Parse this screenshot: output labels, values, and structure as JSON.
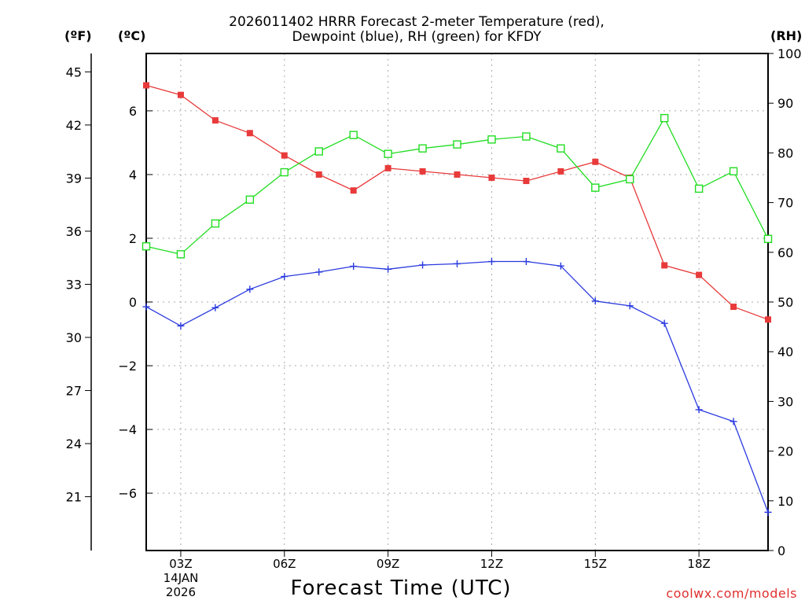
{
  "title_line1": "2026011402 HRRR Forecast 2-meter Temperature (red),",
  "title_line2": "Dewpoint (blue), RH (green) for KFDY",
  "units": {
    "fahrenheit": "(ºF)",
    "celsius": "(ºC)",
    "rh": "(RH)"
  },
  "xlabel": "Forecast Time (UTC)",
  "credit": "coolwx.com/models",
  "date_line1": "14JAN",
  "date_line2": "2026",
  "chart_data": {
    "type": "line",
    "title": "2026011402 HRRR Forecast 2-meter Temperature (red), Dewpoint (blue), RH (green) for KFDY",
    "xlabel": "Forecast Time (UTC)",
    "x_hours": [
      2,
      3,
      4,
      5,
      6,
      7,
      8,
      9,
      10,
      11,
      12,
      13,
      14,
      15,
      16,
      17,
      18,
      19,
      20
    ],
    "x_range": [
      2,
      20
    ],
    "x_ticks": [
      {
        "hour": 3,
        "label": "03Z"
      },
      {
        "hour": 6,
        "label": "06Z"
      },
      {
        "hour": 9,
        "label": "09Z"
      },
      {
        "hour": 12,
        "label": "12Z"
      },
      {
        "hour": 15,
        "label": "15Z"
      },
      {
        "hour": 18,
        "label": "18Z"
      }
    ],
    "celsius_axis": {
      "range": [
        -7.8,
        7.8
      ],
      "ticks": [
        "6",
        "4",
        "2",
        "0",
        "−2",
        "−4",
        "−6"
      ],
      "tick_values": [
        6,
        4,
        2,
        0,
        -2,
        -4,
        -6
      ]
    },
    "fahrenheit_axis": {
      "ticks": [
        "45",
        "42",
        "39",
        "36",
        "33",
        "30",
        "27",
        "24",
        "21"
      ],
      "tick_values": [
        45,
        42,
        39,
        36,
        33,
        30,
        27,
        24,
        21
      ]
    },
    "rh_axis": {
      "range": [
        0,
        100
      ],
      "ticks": [
        "100",
        "90",
        "80",
        "70",
        "60",
        "50",
        "40",
        "30",
        "20",
        "10",
        "0"
      ],
      "tick_values": [
        100,
        90,
        80,
        70,
        60,
        50,
        40,
        30,
        20,
        10,
        0
      ]
    },
    "series": [
      {
        "name": "Temperature",
        "axis": "celsius",
        "color": "#e83a3a",
        "marker": "filled-square",
        "values": [
          6.8,
          6.5,
          5.7,
          5.3,
          4.6,
          4.0,
          3.5,
          4.2,
          4.1,
          4.0,
          3.9,
          3.8,
          4.1,
          4.4,
          3.9,
          1.15,
          0.85,
          -0.15,
          -0.55
        ]
      },
      {
        "name": "Dewpoint",
        "axis": "celsius",
        "color": "#2a3adf",
        "marker": "plus",
        "values": [
          -0.15,
          -0.75,
          -0.18,
          0.4,
          0.8,
          0.94,
          1.12,
          1.03,
          1.16,
          1.2,
          1.27,
          1.27,
          1.13,
          0.03,
          -0.12,
          -0.67,
          -3.38,
          -3.75,
          -6.6
        ]
      },
      {
        "name": "RH",
        "axis": "rh",
        "color": "#22dd22",
        "marker": "open-square",
        "values": [
          61.2,
          59.6,
          65.8,
          70.6,
          76.1,
          80.3,
          83.6,
          79.8,
          80.9,
          81.7,
          82.7,
          83.3,
          80.9,
          73.0,
          74.7,
          87.0,
          72.8,
          76.3,
          62.7
        ]
      }
    ]
  }
}
